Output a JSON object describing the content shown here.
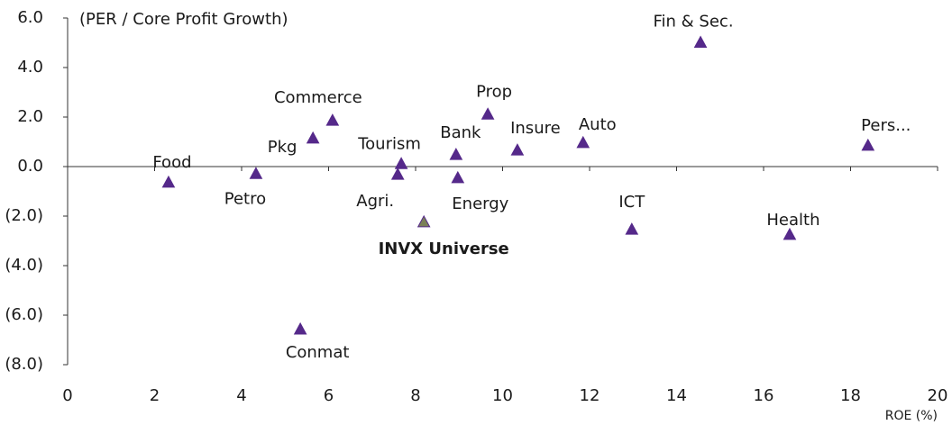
{
  "chart_data": {
    "type": "scatter",
    "y_axis_note": "(PER / Core Profit Growth)",
    "x_label": "ROE (%)",
    "color": "#55298a",
    "xlim": [
      0,
      20
    ],
    "xticks": [
      0,
      2,
      4,
      6,
      8,
      10,
      12,
      14,
      16,
      18,
      20
    ],
    "ylim": [
      -8,
      6
    ],
    "yticks": [
      {
        "value": 6,
        "label": "6.0"
      },
      {
        "value": 4,
        "label": "4.0"
      },
      {
        "value": 2,
        "label": "2.0"
      },
      {
        "value": 0,
        "label": "0.0"
      },
      {
        "value": -2,
        "label": "(2.0)"
      },
      {
        "value": -4,
        "label": "(4.0)"
      },
      {
        "value": -6,
        "label": "(6.0)"
      },
      {
        "value": -8,
        "label": "(8.0)"
      }
    ],
    "points": [
      {
        "label": "Food",
        "x": 2.32,
        "y": -0.65
      },
      {
        "label": "Petro",
        "x": 4.33,
        "y": -0.3
      },
      {
        "label": "Pkg",
        "x": 5.64,
        "y": 1.13
      },
      {
        "label": "Commerce",
        "x": 6.09,
        "y": 1.85
      },
      {
        "label": "Conmat",
        "x": 5.35,
        "y": -6.58
      },
      {
        "label": "Agri.",
        "x": 7.59,
        "y": -0.33
      },
      {
        "label": "Tourism",
        "x": 7.67,
        "y": 0.1
      },
      {
        "label": "INVX Universe",
        "x": 8.19,
        "y": -2.25,
        "color": "#7a8056",
        "bold": true
      },
      {
        "label": "Bank",
        "x": 8.93,
        "y": 0.47
      },
      {
        "label": "Energy",
        "x": 8.97,
        "y": -0.47
      },
      {
        "label": "Prop",
        "x": 9.66,
        "y": 2.1
      },
      {
        "label": "Insure",
        "x": 10.34,
        "y": 0.65
      },
      {
        "label": "Auto",
        "x": 11.85,
        "y": 0.95
      },
      {
        "label": "ICT",
        "x": 12.97,
        "y": -2.55
      },
      {
        "label": "Fin & Sec.",
        "x": 14.55,
        "y": 5.0
      },
      {
        "label": "Health",
        "x": 16.6,
        "y": -2.76
      },
      {
        "label": "Pers...",
        "x": 18.4,
        "y": 0.84
      }
    ]
  }
}
